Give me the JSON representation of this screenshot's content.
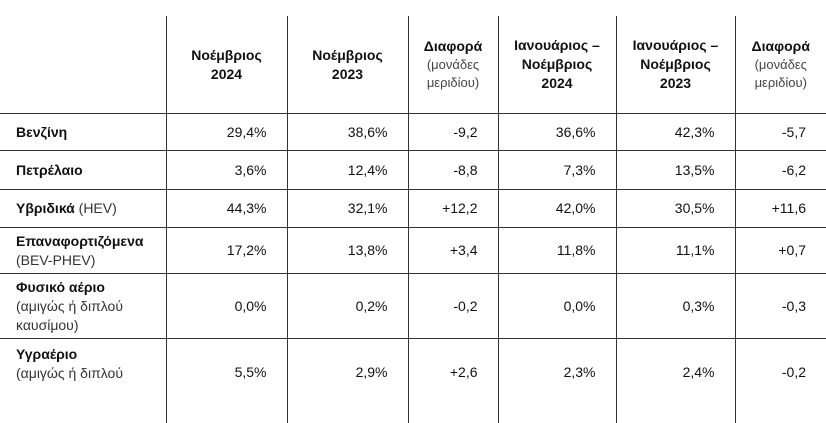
{
  "table": {
    "header": {
      "c1": [
        "Νοέμβριος",
        "2024"
      ],
      "c2": [
        "Νοέμβριος",
        "2023"
      ],
      "c3": {
        "title": "Διαφορά",
        "sub": [
          "(μονάδες",
          "μεριδίου)"
        ]
      },
      "c4": [
        "Ιανουάριος –",
        "Νοέμβριος",
        "2024"
      ],
      "c5": [
        "Ιανουάριος –",
        "Νοέμβριος",
        "2023"
      ],
      "c6": {
        "title": "Διαφορά",
        "sub": [
          "(μονάδες",
          "μεριδίου)"
        ]
      }
    },
    "rows": [
      {
        "name": "Βενζίνη",
        "note": "",
        "values": [
          "29,4%",
          "38,6%",
          "-9,2",
          "36,6%",
          "42,3%",
          "-5,7"
        ]
      },
      {
        "name": "Πετρέλαιο",
        "note": "",
        "values": [
          "3,6%",
          "12,4%",
          "-8,8",
          "7,3%",
          "13,5%",
          "-6,2"
        ]
      },
      {
        "name": "Υβριδικά",
        "note": "(HEV)",
        "values": [
          "44,3%",
          "32,1%",
          "+12,2",
          "42,0%",
          "30,5%",
          "+11,6"
        ]
      },
      {
        "name": "Επαναφορτιζόμενα",
        "note": "(BEV-PHEV)",
        "values": [
          "17,2%",
          "13,8%",
          "+3,4",
          "11,8%",
          "11,1%",
          "+0,7"
        ]
      },
      {
        "name": "Φυσικό αέριο",
        "note": [
          "(αμιγώς ή διπλού",
          "καυσίμου)"
        ],
        "values": [
          "0,0%",
          "0,2%",
          "-0,2",
          "0,0%",
          "0,3%",
          "-0,3"
        ]
      },
      {
        "name": "Υγραέριο",
        "note": [
          "(αμιγώς ή διπλού"
        ],
        "values": [
          "5,5%",
          "2,9%",
          "+2,6",
          "2,3%",
          "2,4%",
          "-0,2"
        ]
      }
    ]
  }
}
